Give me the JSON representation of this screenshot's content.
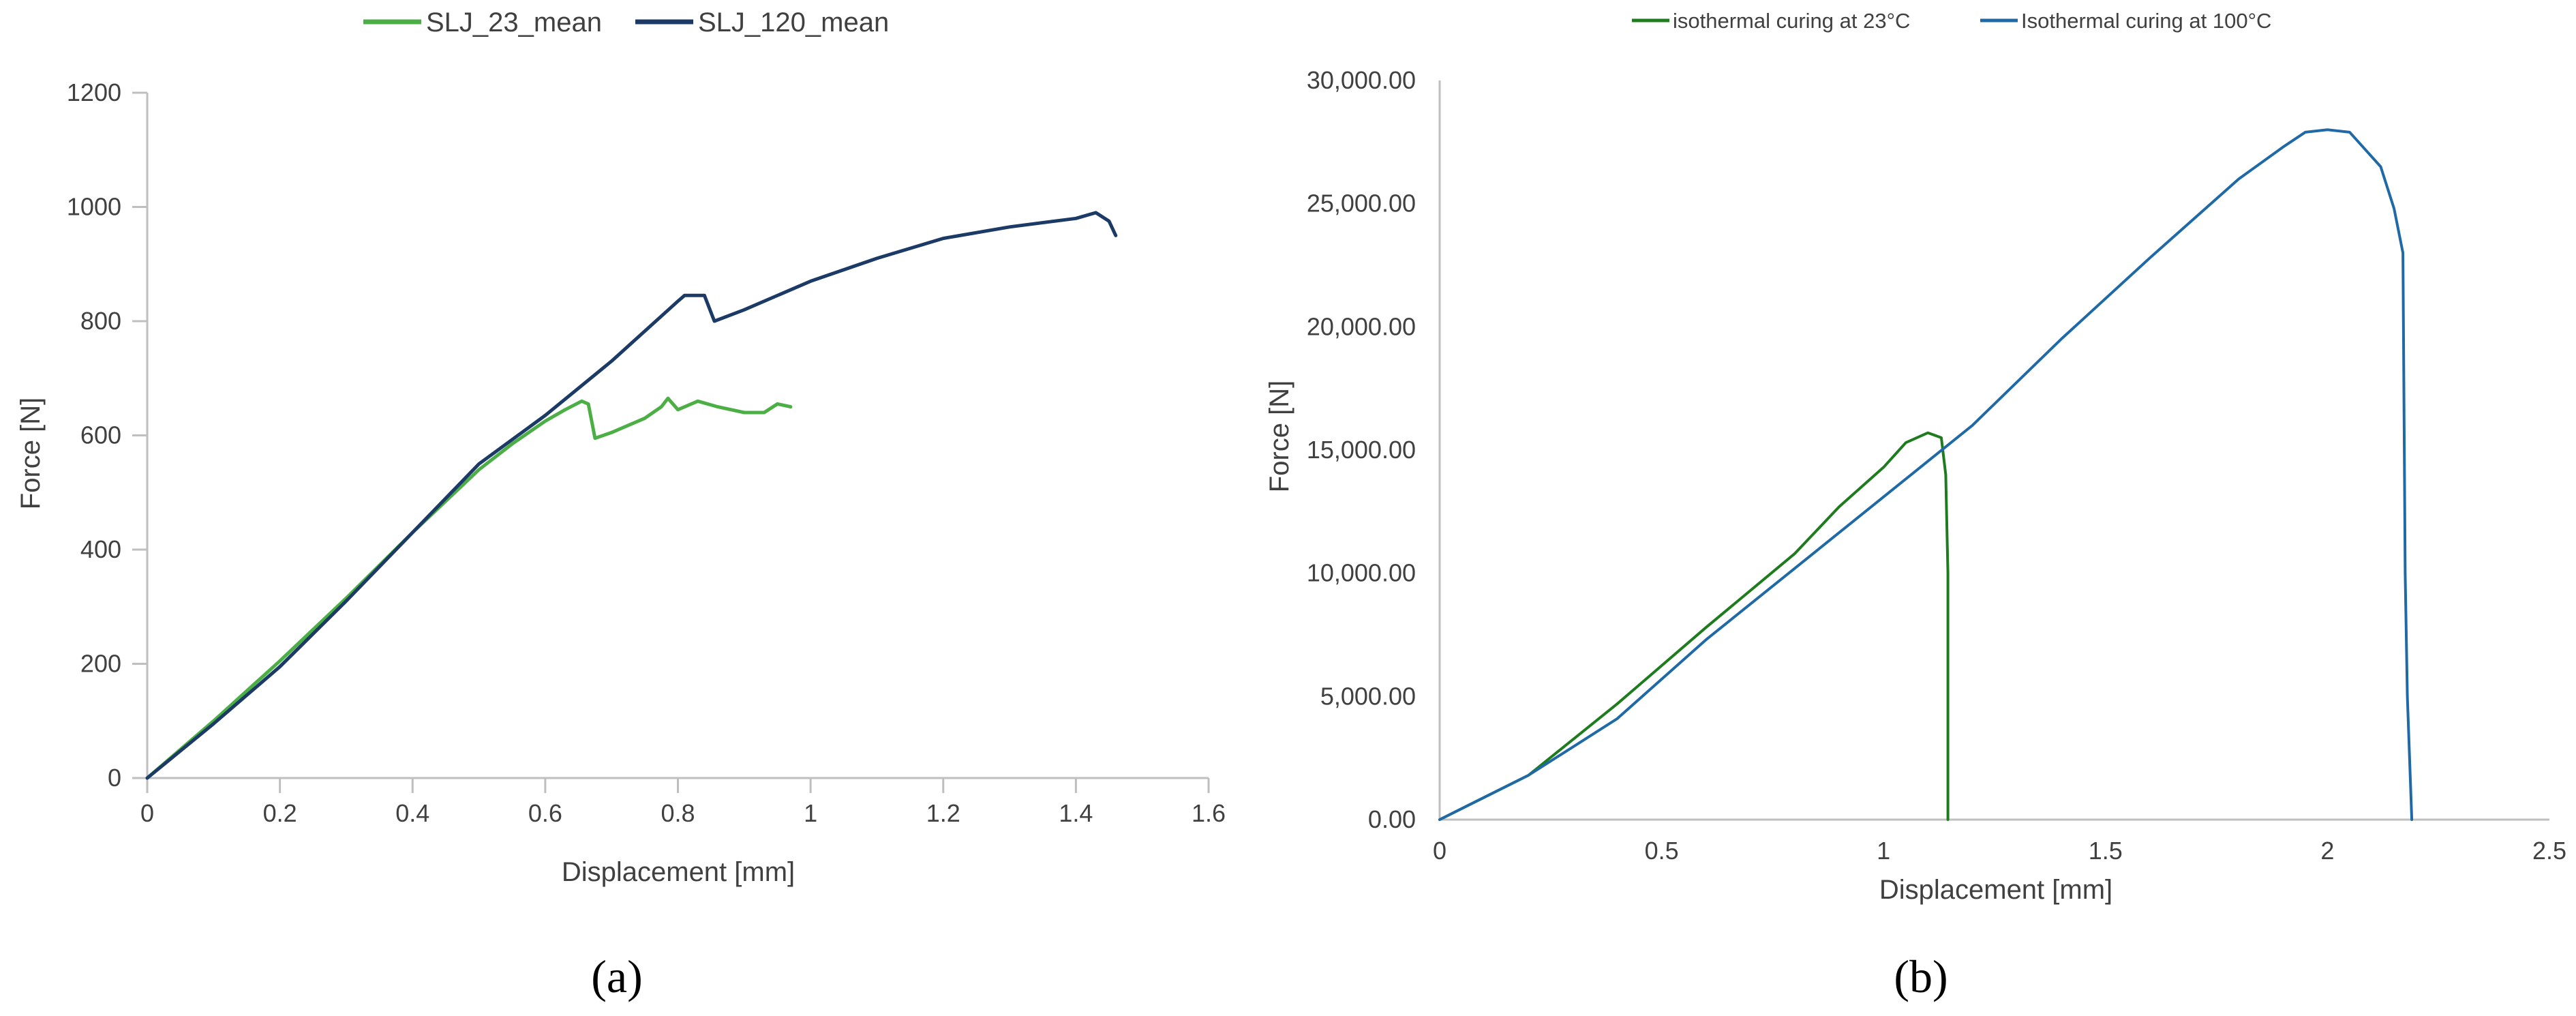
{
  "chart_data": [
    {
      "panel": "(a)",
      "type": "line",
      "xlabel": "Displacement [mm]",
      "ylabel": "Force [N]",
      "xlim": [
        0,
        1.6
      ],
      "ylim": [
        0,
        1200
      ],
      "xticks": [
        "0",
        "0.2",
        "0.4",
        "0.6",
        "0.8",
        "1",
        "1.2",
        "1.4",
        "1.6"
      ],
      "yticks": [
        "0",
        "200",
        "400",
        "600",
        "800",
        "1000",
        "1200"
      ],
      "grid": false,
      "legend": "top-center",
      "colors": [
        "#4caf45",
        "#1b3a66"
      ],
      "series": [
        {
          "name": "SLJ_23_mean",
          "points": [
            [
              0,
              0
            ],
            [
              0.1,
              100
            ],
            [
              0.2,
              205
            ],
            [
              0.3,
              315
            ],
            [
              0.4,
              430
            ],
            [
              0.5,
              540
            ],
            [
              0.55,
              585
            ],
            [
              0.6,
              625
            ],
            [
              0.63,
              645
            ],
            [
              0.655,
              660
            ],
            [
              0.665,
              655
            ],
            [
              0.675,
              595
            ],
            [
              0.7,
              605
            ],
            [
              0.75,
              630
            ],
            [
              0.775,
              650
            ],
            [
              0.785,
              665
            ],
            [
              0.8,
              645
            ],
            [
              0.83,
              660
            ],
            [
              0.86,
              650
            ],
            [
              0.9,
              640
            ],
            [
              0.93,
              640
            ],
            [
              0.95,
              655
            ],
            [
              0.97,
              650
            ]
          ]
        },
        {
          "name": "SLJ_120_mean",
          "points": [
            [
              0,
              0
            ],
            [
              0.1,
              95
            ],
            [
              0.2,
              195
            ],
            [
              0.3,
              310
            ],
            [
              0.4,
              430
            ],
            [
              0.5,
              550
            ],
            [
              0.6,
              635
            ],
            [
              0.7,
              730
            ],
            [
              0.8,
              835
            ],
            [
              0.81,
              845
            ],
            [
              0.84,
              845
            ],
            [
              0.855,
              800
            ],
            [
              0.9,
              820
            ],
            [
              1.0,
              870
            ],
            [
              1.1,
              910
            ],
            [
              1.2,
              945
            ],
            [
              1.3,
              965
            ],
            [
              1.4,
              980
            ],
            [
              1.43,
              990
            ],
            [
              1.45,
              975
            ],
            [
              1.46,
              950
            ]
          ]
        }
      ]
    },
    {
      "panel": "(b)",
      "type": "line",
      "xlabel": "Displacement [mm]",
      "ylabel": "Force [N]",
      "xlim": [
        0,
        2.5
      ],
      "ylim": [
        0,
        30000
      ],
      "xticks": [
        "0",
        "0.5",
        "1",
        "1.5",
        "2",
        "2.5"
      ],
      "yticks": [
        "0.00",
        "5,000.00",
        "10,000.00",
        "15,000.00",
        "20,000.00",
        "25,000.00",
        "30,000.00"
      ],
      "grid": false,
      "legend": "top-center",
      "colors": [
        "#1e7b1e",
        "#1f6aa6"
      ],
      "series": [
        {
          "name": "isothermal curing at 23°C",
          "points": [
            [
              0,
              0
            ],
            [
              0.2,
              1800
            ],
            [
              0.4,
              4700
            ],
            [
              0.6,
              7800
            ],
            [
              0.8,
              10800
            ],
            [
              0.9,
              12700
            ],
            [
              1.0,
              14300
            ],
            [
              1.05,
              15300
            ],
            [
              1.1,
              15700
            ],
            [
              1.13,
              15500
            ],
            [
              1.14,
              14000
            ],
            [
              1.145,
              10000
            ],
            [
              1.145,
              0
            ]
          ]
        },
        {
          "name": "Isothermal curing at 100°C",
          "points": [
            [
              0,
              0
            ],
            [
              0.2,
              1800
            ],
            [
              0.4,
              4100
            ],
            [
              0.6,
              7300
            ],
            [
              0.8,
              10200
            ],
            [
              1.0,
              13100
            ],
            [
              1.2,
              16000
            ],
            [
              1.4,
              19500
            ],
            [
              1.6,
              22800
            ],
            [
              1.8,
              26000
            ],
            [
              1.9,
              27300
            ],
            [
              1.95,
              27900
            ],
            [
              2.0,
              28000
            ],
            [
              2.05,
              27900
            ],
            [
              2.08,
              27300
            ],
            [
              2.12,
              26500
            ],
            [
              2.15,
              24800
            ],
            [
              2.17,
              23000
            ],
            [
              2.175,
              10000
            ],
            [
              2.18,
              5000
            ],
            [
              2.19,
              0
            ]
          ]
        }
      ]
    }
  ]
}
